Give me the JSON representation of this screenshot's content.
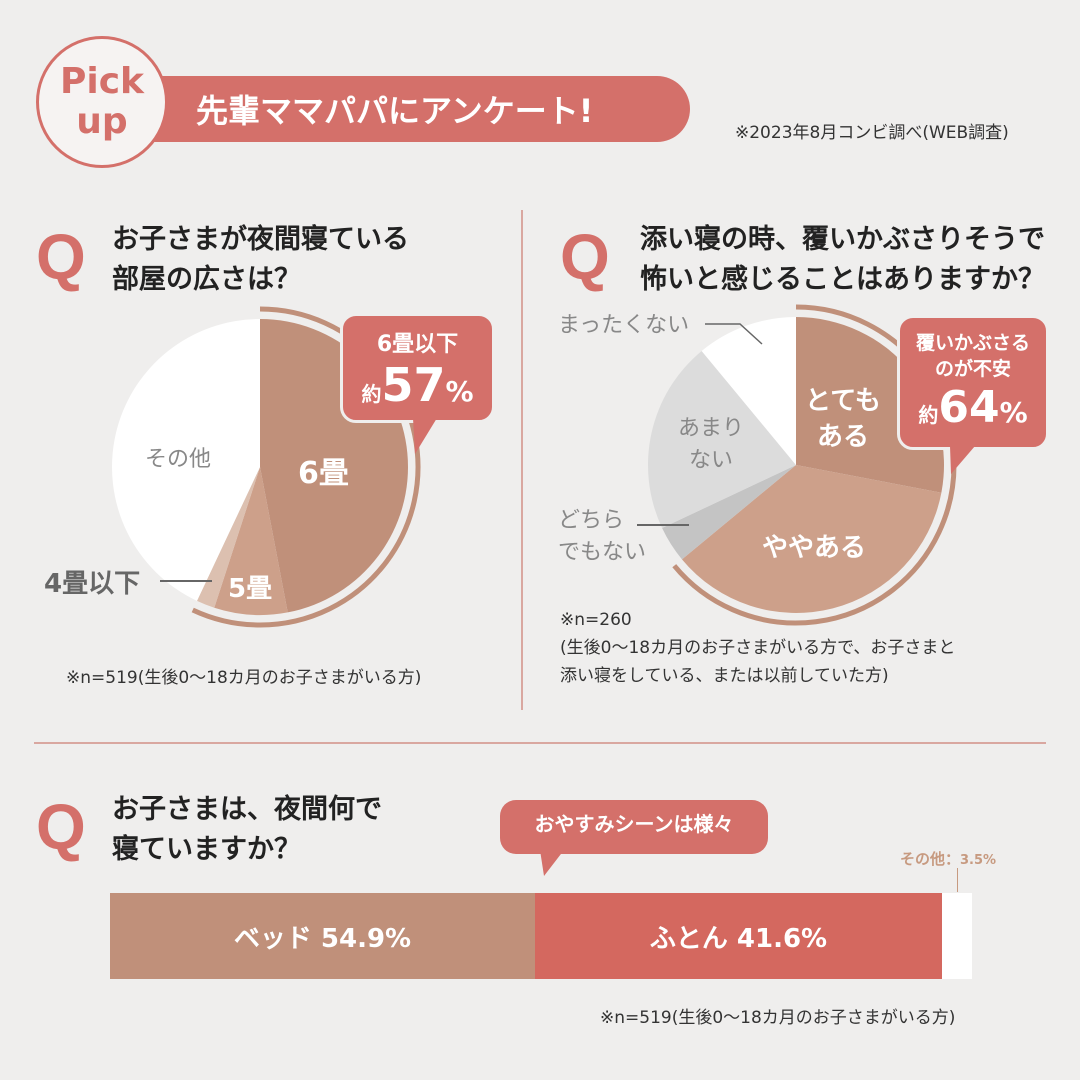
{
  "header": {
    "badge_line1": "Pick",
    "badge_line2": "up",
    "title": "先輩ママパパにアンケート!",
    "source": "※2023年8月コンビ調べ(WEB調査)"
  },
  "colors": {
    "accent": "#d4706a",
    "brown": "#c0907a",
    "light_brown": "#cda08a",
    "pale_brown": "#dcc0b0",
    "white": "#ffffff",
    "gray_light": "#dcdcdc",
    "gray_mid": "#c4c4c4",
    "background": "#efeeed"
  },
  "q_mark": "Q",
  "chart_data": [
    {
      "type": "pie",
      "title": "お子さまが夜間寝ている部屋の広さは？",
      "title_line1": "お子さまが夜間寝ている",
      "title_line2": "部屋の広さは？",
      "slices": [
        {
          "label": "6畳",
          "value": 47,
          "color": "#c0907a"
        },
        {
          "label": "5畳",
          "value": 8,
          "color": "#cda08a"
        },
        {
          "label": "4畳以下",
          "value": 2,
          "color": "#dcc0b0"
        },
        {
          "label": "その他",
          "value": 43,
          "color": "#ffffff"
        }
      ],
      "callout": {
        "label": "6畳以下",
        "prefix": "約",
        "value": "57",
        "unit": "%"
      },
      "note": "※n=519(生後0〜18カ月のお子さまがいる方)"
    },
    {
      "type": "pie",
      "title": "添い寝の時、覆いかぶさりそうで怖いと感じることはありますか？",
      "title_line1": "添い寝の時、覆いかぶさりそうで",
      "title_line2": "怖いと感じることはありますか？",
      "slices": [
        {
          "label": "とてもある",
          "label_line1": "とても",
          "label_line2": "ある",
          "value": 28,
          "color": "#c0907a"
        },
        {
          "label": "ややある",
          "value": 36,
          "color": "#cda08a"
        },
        {
          "label": "どちらでもない",
          "label_line1": "どちら",
          "label_line2": "でもない",
          "value": 4,
          "color": "#c4c4c4"
        },
        {
          "label": "あまりない",
          "label_line1": "あまり",
          "label_line2": "ない",
          "value": 21,
          "color": "#dcdcdc"
        },
        {
          "label": "まったくない",
          "value": 11,
          "color": "#ffffff"
        }
      ],
      "callout": {
        "label_line1": "覆いかぶさる",
        "label_line2": "のが不安",
        "prefix": "約",
        "value": "64",
        "unit": "%"
      },
      "note_line1": "※n=260",
      "note_line2": "(生後0〜18カ月のお子さまがいる方で、お子さまと",
      "note_line3": "添い寝をしている、または以前していた方)"
    },
    {
      "type": "bar",
      "title": "お子さまは、夜間何で寝ていますか？",
      "title_line1": "お子さまは、夜間何で",
      "title_line2": "寝ていますか？",
      "orientation": "horizontal-stacked",
      "series": [
        {
          "name": "ベッド",
          "value": 54.9,
          "label": "ベッド 54.9%",
          "color": "#c0907a"
        },
        {
          "name": "ふとん",
          "value": 41.6,
          "label": "ふとん 41.6%",
          "color": "#d4685f"
        },
        {
          "name": "その他",
          "value": 3.5,
          "label_name": "その他：",
          "label_value": "3.5%",
          "color": "#ffffff"
        }
      ],
      "callout": "おやすみシーンは様々",
      "note": "※n=519(生後0〜18カ月のお子さまがいる方)"
    }
  ]
}
